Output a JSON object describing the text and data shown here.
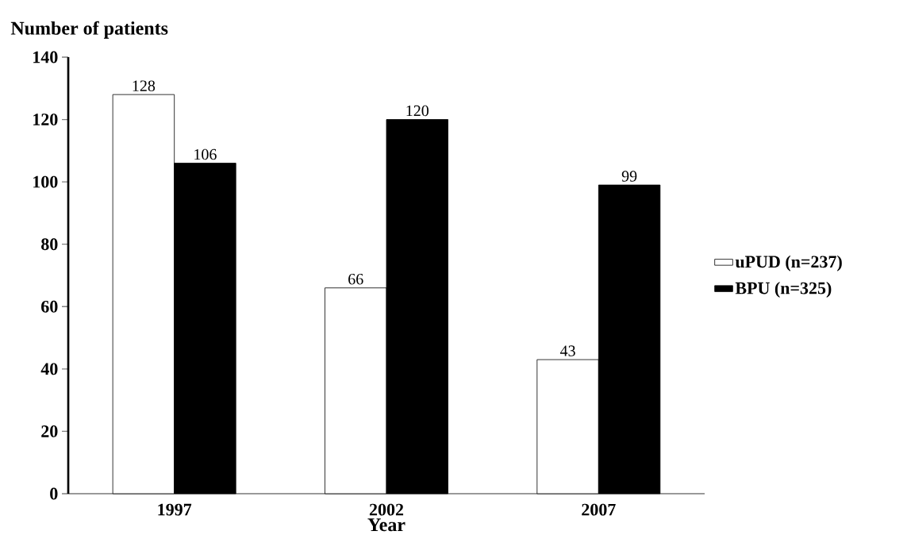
{
  "chart_data": {
    "type": "bar",
    "ylabel": "Number of patients",
    "xlabel": "Year",
    "categories": [
      "1997",
      "2002",
      "2007"
    ],
    "series": [
      {
        "name": "uPUD (n=237)",
        "color": "#ffffff",
        "values": [
          128,
          66,
          43
        ]
      },
      {
        "name": "BPU (n=325)",
        "color": "#000000",
        "values": [
          106,
          120,
          99
        ]
      }
    ],
    "ylim": [
      0,
      140
    ],
    "yticks": [
      0,
      20,
      40,
      60,
      80,
      100,
      120,
      140
    ],
    "data_labels": true,
    "grid": false,
    "legend": "right"
  }
}
